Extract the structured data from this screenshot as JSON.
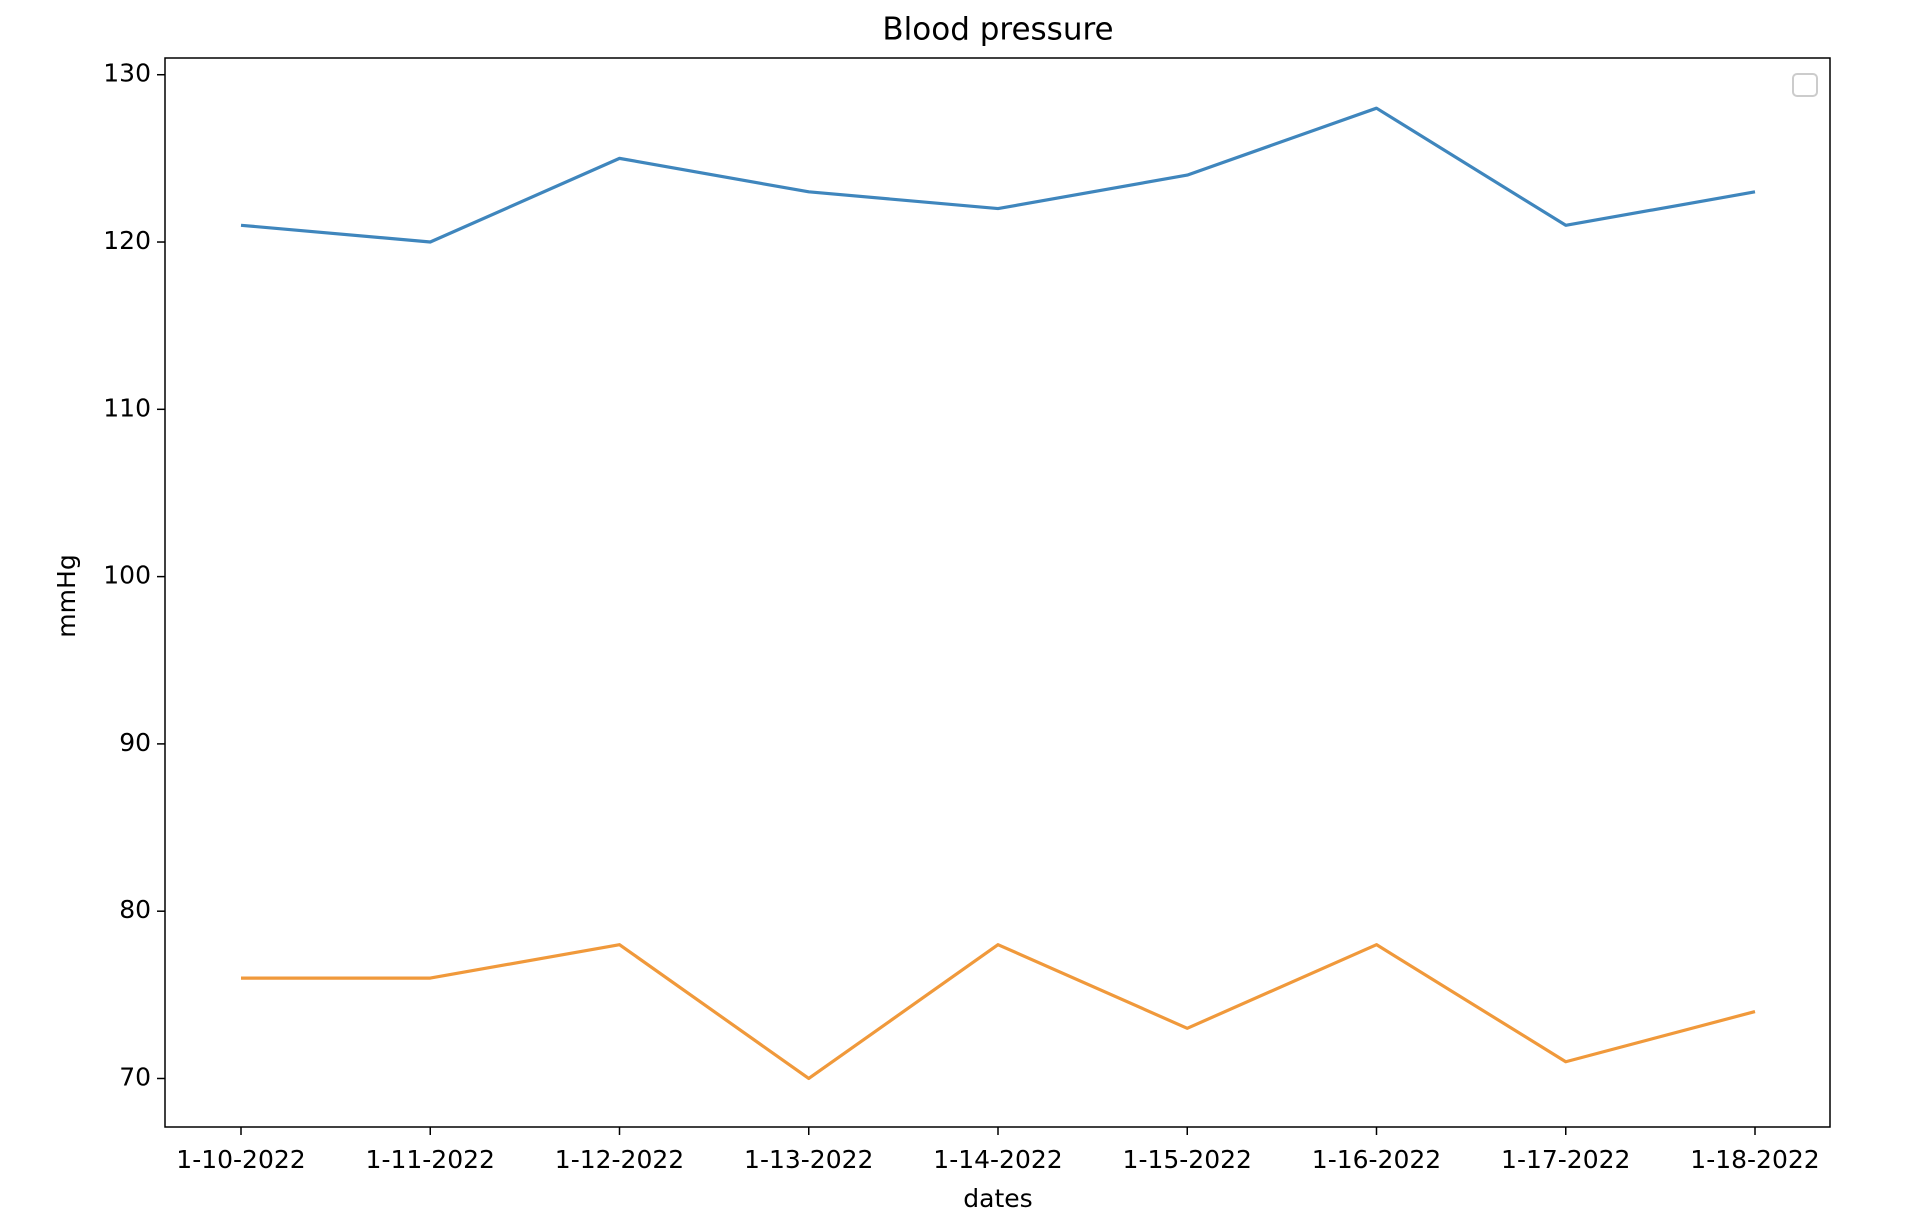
{
  "chart_data": {
    "type": "line",
    "title": "Blood pressure",
    "x_label": "dates",
    "y_label": "mmHg",
    "categories": [
      "1-10-2022",
      "1-11-2022",
      "1-12-2022",
      "1-13-2022",
      "1-14-2022",
      "1-15-2022",
      "1-16-2022",
      "1-17-2022",
      "1-18-2022"
    ],
    "series": [
      {
        "color": "#3f86bd",
        "values": [
          121,
          120,
          125,
          123,
          122,
          124,
          128,
          121,
          123
        ]
      },
      {
        "color": "#f0993b",
        "values": [
          76,
          76,
          78,
          70,
          78,
          73,
          78,
          71,
          74
        ]
      }
    ],
    "ylim": [
      67.1,
      131
    ],
    "yticks": [
      70,
      80,
      90,
      100,
      110,
      120,
      130
    ],
    "grid": false
  }
}
